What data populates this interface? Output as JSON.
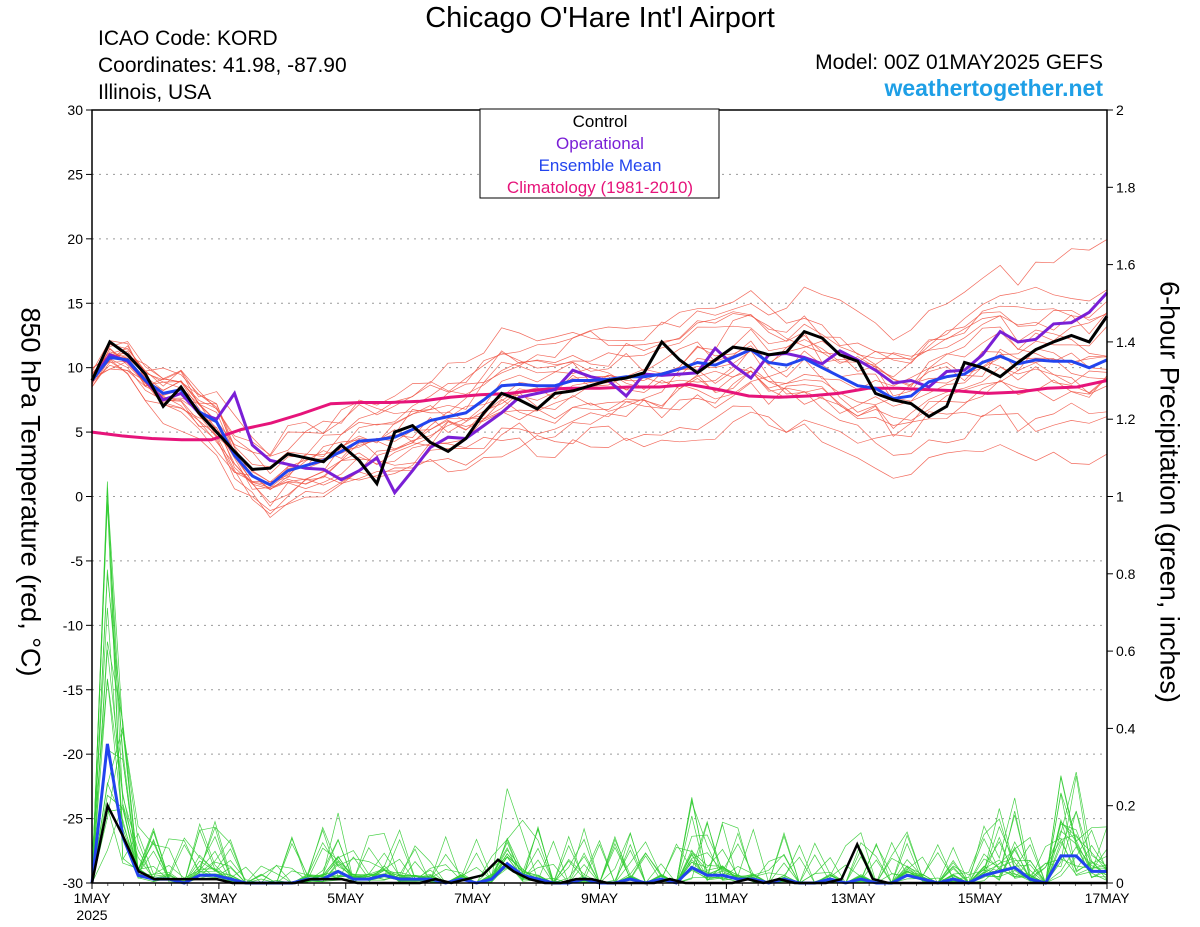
{
  "header": {
    "title": "Chicago O'Hare Int'l Airport",
    "icao": "ICAO Code: KORD",
    "coordinates": "Coordinates: 41.98, -87.90",
    "region": "Illinois, USA",
    "model": "Model: 00Z 01MAY2025 GEFS",
    "brand": "weathertogether.net"
  },
  "colors": {
    "members_temp": "#f05040",
    "members_precip": "#33cc33",
    "control": "#000000",
    "operational": "#7a1fd6",
    "ensemble_mean": "#2244ee",
    "climatology": "#e6147a",
    "brand": "#1e9fe6"
  },
  "chart_data": {
    "type": "line",
    "xlabel": "",
    "ylabel": "850 hPa Temperature (red, °C)",
    "y2label": "6-hour Precipitation (green, inches)",
    "x_unit": "days after 00Z 1 May 2025 (6-hour steps)",
    "x_range": [
      0,
      16
    ],
    "ylim": [
      -30,
      30
    ],
    "y2lim": [
      0,
      2
    ],
    "x_ticks": [
      {
        "x": 0,
        "label": "1MAY",
        "sublabel": "2025"
      },
      {
        "x": 2,
        "label": "3MAY"
      },
      {
        "x": 4,
        "label": "5MAY"
      },
      {
        "x": 6,
        "label": "7MAY"
      },
      {
        "x": 8,
        "label": "9MAY"
      },
      {
        "x": 10,
        "label": "11MAY"
      },
      {
        "x": 12,
        "label": "13MAY"
      },
      {
        "x": 14,
        "label": "15MAY"
      },
      {
        "x": 16,
        "label": "17MAY"
      }
    ],
    "y_ticks": [
      30,
      25,
      20,
      15,
      10,
      5,
      0,
      -5,
      -10,
      -15,
      -20,
      -25,
      -30
    ],
    "y2_ticks": [
      "2",
      "1.8",
      "1.6",
      "1.4",
      "1.2",
      "1",
      "0.8",
      "0.6",
      "0.4",
      "0.2",
      "0"
    ],
    "grid": true,
    "legend_position": "top-center",
    "legend": [
      "Control",
      "Operational",
      "Ensemble Mean",
      "Climatology (1981-2010)"
    ],
    "temperature": {
      "control": [
        9,
        12,
        11,
        9.5,
        7,
        8.5,
        6.5,
        5,
        3.5,
        2.1,
        2.2,
        3.3,
        3,
        2.7,
        4,
        2.8,
        1,
        5,
        5.5,
        4.2,
        3.5,
        4.5,
        6.5,
        8,
        7.5,
        6.8,
        8,
        8.2,
        8.6,
        9,
        9.2,
        9.6,
        12,
        10.6,
        9.6,
        10.6,
        11.6,
        11.4,
        11,
        11.2,
        12.8,
        12.3,
        11,
        10.5,
        8,
        7.5,
        7.2,
        6.2,
        7,
        10.4,
        10,
        9.3,
        10.4,
        11.4,
        12,
        12.5,
        12,
        14
      ],
      "operational": [
        9,
        11,
        10.5,
        9,
        7.5,
        8,
        6.5,
        6,
        8,
        4,
        2.8,
        2.5,
        2.2,
        2.1,
        1.3,
        2,
        3,
        0.3,
        2,
        3.8,
        4.6,
        4.5,
        5.5,
        6.5,
        7.7,
        8,
        8.3,
        9.8,
        9.3,
        9,
        7.8,
        9.5,
        9.4,
        9.5,
        9.6,
        11.5,
        10.2,
        9.2,
        11,
        11.1,
        10.8,
        10.3,
        11.3,
        10.6,
        9.8,
        8.8,
        9,
        8.5,
        9.7,
        9.8,
        11,
        12.8,
        12,
        12.2,
        13.4,
        13.5,
        14.3,
        15.8
      ],
      "ensemble_mean": [
        9,
        10.8,
        10.6,
        9,
        8,
        8.3,
        6.6,
        5.8,
        3.2,
        1.6,
        0.9,
        2,
        2.4,
        2.8,
        3.5,
        4.3,
        4.4,
        4.6,
        5.2,
        5.9,
        6.2,
        6.5,
        7.5,
        8.6,
        8.7,
        8.6,
        8.6,
        9,
        9,
        9.1,
        9.3,
        9.3,
        9.5,
        9.9,
        10.4,
        10.2,
        10.8,
        11.4,
        10.4,
        10.2,
        10.7,
        10,
        9.3,
        8.6,
        8.4,
        7.6,
        7.8,
        8.9,
        9.3,
        9.5,
        10.4,
        10.9,
        10.3,
        10.6,
        10.5,
        10.5,
        10,
        10.6
      ],
      "climatology": [
        5,
        4.7,
        4.5,
        4.4,
        4.4,
        5.2,
        5.7,
        6.4,
        7.2,
        7.3,
        7.3,
        7.4,
        7.7,
        7.9,
        8,
        8.3,
        8.4,
        8.4,
        8.5,
        8.5,
        8.7,
        8.3,
        7.8,
        7.7,
        7.8,
        8,
        8.4,
        8.4,
        8.3,
        8.2,
        8,
        8.1,
        8.4,
        8.5,
        9
      ]
    },
    "precipitation": {
      "control": [
        0,
        0.2,
        0.12,
        0.03,
        0.01,
        0.01,
        0.01,
        0.01,
        0.01,
        0,
        0,
        0,
        0,
        0,
        0.01,
        0.01,
        0.01,
        0,
        0,
        0,
        0,
        0,
        0.01,
        0,
        0.01,
        0.02,
        0.06,
        0.03,
        0.01,
        0,
        0,
        0.01,
        0.01,
        0,
        0,
        0,
        0,
        0.01,
        0,
        0,
        0,
        0,
        0.01,
        0,
        0.01,
        0,
        0,
        0,
        0.01,
        0.1,
        0.01,
        0,
        0,
        0,
        0,
        0,
        0,
        0,
        0,
        0,
        0,
        0,
        0,
        0,
        0,
        0
      ],
      "ensemble_mean": [
        0,
        0.36,
        0.12,
        0.02,
        0.01,
        0.01,
        0,
        0.02,
        0.02,
        0.01,
        0,
        0,
        0,
        0,
        0.01,
        0.01,
        0.03,
        0.01,
        0.01,
        0.02,
        0.01,
        0.01,
        0.01,
        0,
        0.01,
        0,
        0.01,
        0.05,
        0.02,
        0.01,
        0,
        0,
        0.01,
        0,
        0,
        0.01,
        0,
        0.01,
        0,
        0.04,
        0.02,
        0.02,
        0.01,
        0.01,
        0,
        0.01,
        0,
        0,
        0.01,
        0,
        0.01,
        0,
        0,
        0.02,
        0.01,
        0,
        0.01,
        0,
        0.02,
        0.03,
        0.04,
        0.01,
        0,
        0.07,
        0.07,
        0.03,
        0.03
      ]
    }
  }
}
